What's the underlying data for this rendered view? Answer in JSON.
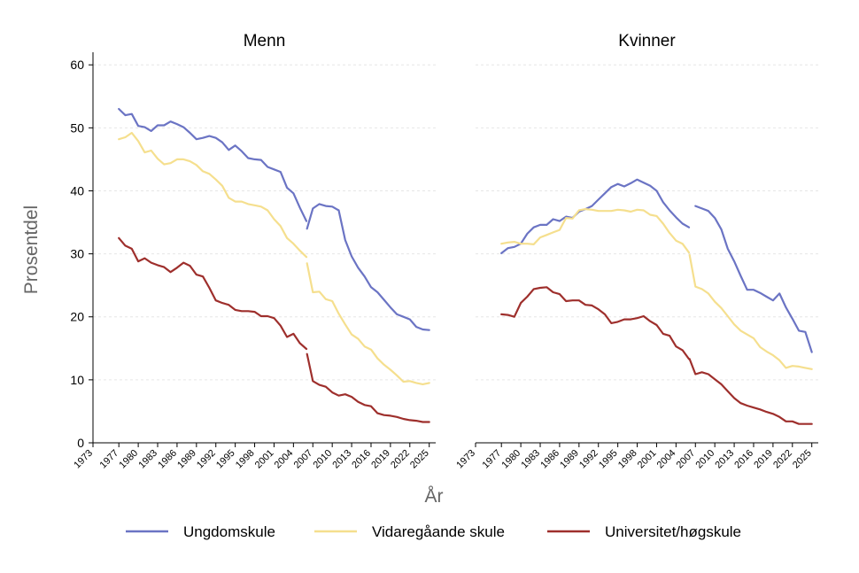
{
  "chart_data": {
    "type": "line",
    "ylabel": "Prosentdel",
    "xlabel": "År",
    "ylim": [
      0,
      62
    ],
    "yticks": [
      0,
      10,
      20,
      30,
      40,
      50,
      60
    ],
    "xlim": [
      1973,
      2026
    ],
    "xticks": [
      1973,
      1977,
      1980,
      1983,
      1986,
      1989,
      1992,
      1995,
      1998,
      2001,
      2004,
      2007,
      2010,
      2013,
      2016,
      2019,
      2022,
      2025
    ],
    "grid": true,
    "legend_position": "bottom",
    "series_styles": [
      {
        "name": "Ungdomskule",
        "color": "#6b74c4"
      },
      {
        "name": "Vidaregåande skule",
        "color": "#f5df8e"
      },
      {
        "name": "Universitet/høgskule",
        "color": "#9e2f2c"
      }
    ],
    "panels": [
      {
        "title": "Menn",
        "series": [
          {
            "name": "Ungdomskule",
            "segments": [
              {
                "x": [
                  1977,
                  1978,
                  1979,
                  1980,
                  1981,
                  1982,
                  1983,
                  1984,
                  1985,
                  1986,
                  1987,
                  1988,
                  1989,
                  1990,
                  1991,
                  1992,
                  1993,
                  1994,
                  1995,
                  1996,
                  1997,
                  1998,
                  1999,
                  2000,
                  2001,
                  2002,
                  2003,
                  2004,
                  2005,
                  2006
                ],
                "y": [
                  53.0,
                  52.0,
                  52.2,
                  50.3,
                  50.1,
                  49.5,
                  50.4,
                  50.4,
                  51.0,
                  50.6,
                  50.1,
                  49.2,
                  48.2,
                  48.4,
                  48.7,
                  48.4,
                  47.7,
                  46.5,
                  47.2,
                  46.3,
                  45.2,
                  45.0,
                  44.9,
                  43.8,
                  43.4,
                  43.0,
                  40.5,
                  39.6,
                  37.3,
                  35.2
                ]
              },
              {
                "x": [
                  2006.1,
                  2007,
                  2008,
                  2009,
                  2010,
                  2011,
                  2012,
                  2013,
                  2014,
                  2015,
                  2016,
                  2017,
                  2018,
                  2019,
                  2020,
                  2021,
                  2022,
                  2023,
                  2024,
                  2025
                ],
                "y": [
                  34.0,
                  37.2,
                  37.9,
                  37.6,
                  37.5,
                  36.9,
                  32.2,
                  29.6,
                  27.8,
                  26.4,
                  24.7,
                  23.9,
                  22.7,
                  21.5,
                  20.4,
                  20.0,
                  19.6,
                  18.4,
                  18.0,
                  17.9
                ]
              }
            ]
          },
          {
            "name": "Vidaregåande skule",
            "segments": [
              {
                "x": [
                  1977,
                  1978,
                  1979,
                  1980,
                  1981,
                  1982,
                  1983,
                  1984,
                  1985,
                  1986,
                  1987,
                  1988,
                  1989,
                  1990,
                  1991,
                  1992,
                  1993,
                  1994,
                  1995,
                  1996,
                  1997,
                  1998,
                  1999,
                  2000,
                  2001,
                  2002,
                  2003,
                  2004,
                  2005,
                  2006
                ],
                "y": [
                  48.2,
                  48.5,
                  49.2,
                  47.9,
                  46.1,
                  46.4,
                  45.1,
                  44.2,
                  44.4,
                  45.0,
                  45.0,
                  44.7,
                  44.1,
                  43.1,
                  42.7,
                  41.8,
                  40.8,
                  38.9,
                  38.3,
                  38.3,
                  37.9,
                  37.7,
                  37.5,
                  36.9,
                  35.5,
                  34.4,
                  32.5,
                  31.6,
                  30.5,
                  29.5
                ]
              },
              {
                "x": [
                  2006.1,
                  2007,
                  2008,
                  2009,
                  2010,
                  2011,
                  2012,
                  2013,
                  2014,
                  2015,
                  2016,
                  2017,
                  2018,
                  2019,
                  2020,
                  2021,
                  2022,
                  2023,
                  2024,
                  2025
                ],
                "y": [
                  28.5,
                  23.9,
                  24.0,
                  22.8,
                  22.5,
                  20.5,
                  18.8,
                  17.2,
                  16.5,
                  15.3,
                  14.8,
                  13.4,
                  12.4,
                  11.6,
                  10.7,
                  9.7,
                  9.8,
                  9.5,
                  9.3,
                  9.5
                ]
              }
            ]
          },
          {
            "name": "Universitet/høgskule",
            "segments": [
              {
                "x": [
                  1977,
                  1978,
                  1979,
                  1980,
                  1981,
                  1982,
                  1983,
                  1984,
                  1985,
                  1986,
                  1987,
                  1988,
                  1989,
                  1990,
                  1991,
                  1992,
                  1993,
                  1994,
                  1995,
                  1996,
                  1997,
                  1998,
                  1999,
                  2000,
                  2001,
                  2002,
                  2003,
                  2004,
                  2005,
                  2006
                ],
                "y": [
                  32.5,
                  31.3,
                  30.8,
                  28.8,
                  29.3,
                  28.6,
                  28.2,
                  27.9,
                  27.1,
                  27.8,
                  28.6,
                  28.1,
                  26.7,
                  26.4,
                  24.6,
                  22.6,
                  22.2,
                  21.9,
                  21.1,
                  20.9,
                  20.9,
                  20.8,
                  20.1,
                  20.1,
                  19.8,
                  18.6,
                  16.8,
                  17.3,
                  15.8,
                  14.9
                ]
              },
              {
                "x": [
                  2006.1,
                  2007,
                  2008,
                  2009,
                  2010,
                  2011,
                  2012,
                  2013,
                  2014,
                  2015,
                  2016,
                  2017,
                  2018,
                  2019,
                  2020,
                  2021,
                  2022,
                  2023,
                  2024,
                  2025
                ],
                "y": [
                  14.1,
                  9.8,
                  9.2,
                  8.9,
                  8.0,
                  7.5,
                  7.7,
                  7.3,
                  6.5,
                  6.0,
                  5.8,
                  4.7,
                  4.4,
                  4.3,
                  4.1,
                  3.8,
                  3.6,
                  3.5,
                  3.3,
                  3.3
                ]
              }
            ]
          }
        ]
      },
      {
        "title": "Kvinner",
        "series": [
          {
            "name": "Ungdomskule",
            "segments": [
              {
                "x": [
                  1977,
                  1978,
                  1979,
                  1980,
                  1981,
                  1982,
                  1983,
                  1984,
                  1985,
                  1986,
                  1987,
                  1988,
                  1989,
                  1990,
                  1991,
                  1992,
                  1993,
                  1994,
                  1995,
                  1996,
                  1997,
                  1998,
                  1999,
                  2000,
                  2001,
                  2002,
                  2003,
                  2004,
                  2005,
                  2006
                ],
                "y": [
                  30.1,
                  30.9,
                  31.1,
                  31.6,
                  33.2,
                  34.2,
                  34.6,
                  34.6,
                  35.5,
                  35.2,
                  35.9,
                  35.7,
                  36.7,
                  37.1,
                  37.6,
                  38.6,
                  39.6,
                  40.6,
                  41.1,
                  40.7,
                  41.2,
                  41.8,
                  41.3,
                  40.8,
                  40.0,
                  38.2,
                  36.9,
                  35.8,
                  34.8,
                  34.2
                ]
              },
              {
                "x": [
                  2007,
                  2008,
                  2009,
                  2010,
                  2011,
                  2012,
                  2013,
                  2014,
                  2015,
                  2016,
                  2017,
                  2018,
                  2019,
                  2020,
                  2021,
                  2022,
                  2023,
                  2024,
                  2025
                ],
                "y": [
                  37.6,
                  37.2,
                  36.8,
                  35.7,
                  33.9,
                  30.8,
                  28.8,
                  26.5,
                  24.3,
                  24.3,
                  23.8,
                  23.2,
                  22.6,
                  23.7,
                  21.5,
                  19.7,
                  17.8,
                  17.6,
                  14.4
                ]
              }
            ]
          },
          {
            "name": "Vidaregåande skule",
            "segments": [
              {
                "x": [
                  1977,
                  1978,
                  1979,
                  1980,
                  1981,
                  1982,
                  1983,
                  1984,
                  1985,
                  1986,
                  1987,
                  1988,
                  1989,
                  1990,
                  1991,
                  1992,
                  1993,
                  1994,
                  1995,
                  1996,
                  1997,
                  1998,
                  1999,
                  2000,
                  2001,
                  2002,
                  2003,
                  2004,
                  2005,
                  2006
                ],
                "y": [
                  31.6,
                  31.8,
                  31.9,
                  31.6,
                  31.6,
                  31.5,
                  32.6,
                  33.0,
                  33.4,
                  33.8,
                  35.7,
                  35.6,
                  36.9,
                  37.1,
                  37.0,
                  36.8,
                  36.8,
                  36.8,
                  37.0,
                  36.9,
                  36.7,
                  37.0,
                  36.9,
                  36.2,
                  36.0,
                  34.8,
                  33.3,
                  32.1,
                  31.6,
                  30.2
                ]
              },
              {
                "x": [
                  2006.1,
                  2007,
                  2008,
                  2009,
                  2010,
                  2011,
                  2012,
                  2013,
                  2014,
                  2015,
                  2016,
                  2017,
                  2018,
                  2019,
                  2020,
                  2021,
                  2022,
                  2023,
                  2024,
                  2025
                ],
                "y": [
                  29.8,
                  24.8,
                  24.4,
                  23.7,
                  22.4,
                  21.4,
                  20.1,
                  18.8,
                  17.8,
                  17.2,
                  16.6,
                  15.2,
                  14.5,
                  13.9,
                  13.1,
                  11.9,
                  12.2,
                  12.1,
                  11.9,
                  11.7
                ]
              }
            ]
          },
          {
            "name": "Universitet/høgskule",
            "segments": [
              {
                "x": [
                  1977,
                  1978,
                  1979,
                  1980,
                  1981,
                  1982,
                  1983,
                  1984,
                  1985,
                  1986,
                  1987,
                  1988,
                  1989,
                  1990,
                  1991,
                  1992,
                  1993,
                  1994,
                  1995,
                  1996,
                  1997,
                  1998,
                  1999,
                  2000,
                  2001,
                  2002,
                  2003,
                  2004,
                  2005,
                  2006
                ],
                "y": [
                  20.4,
                  20.3,
                  20.0,
                  22.2,
                  23.2,
                  24.4,
                  24.6,
                  24.7,
                  23.9,
                  23.6,
                  22.5,
                  22.6,
                  22.6,
                  21.9,
                  21.8,
                  21.2,
                  20.4,
                  19.0,
                  19.2,
                  19.6,
                  19.6,
                  19.8,
                  20.1,
                  19.3,
                  18.7,
                  17.3,
                  17.0,
                  15.3,
                  14.7,
                  13.3
                ]
              },
              {
                "x": [
                  2006.1,
                  2007,
                  2008,
                  2009,
                  2010,
                  2011,
                  2012,
                  2013,
                  2014,
                  2015,
                  2016,
                  2017,
                  2018,
                  2019,
                  2020,
                  2021,
                  2022,
                  2023,
                  2024,
                  2025
                ],
                "y": [
                  13.3,
                  10.9,
                  11.2,
                  10.9,
                  10.1,
                  9.3,
                  8.2,
                  7.1,
                  6.3,
                  5.9,
                  5.6,
                  5.3,
                  4.9,
                  4.6,
                  4.1,
                  3.4,
                  3.4,
                  3.0,
                  3.0,
                  3.0
                ]
              }
            ]
          }
        ]
      }
    ]
  }
}
